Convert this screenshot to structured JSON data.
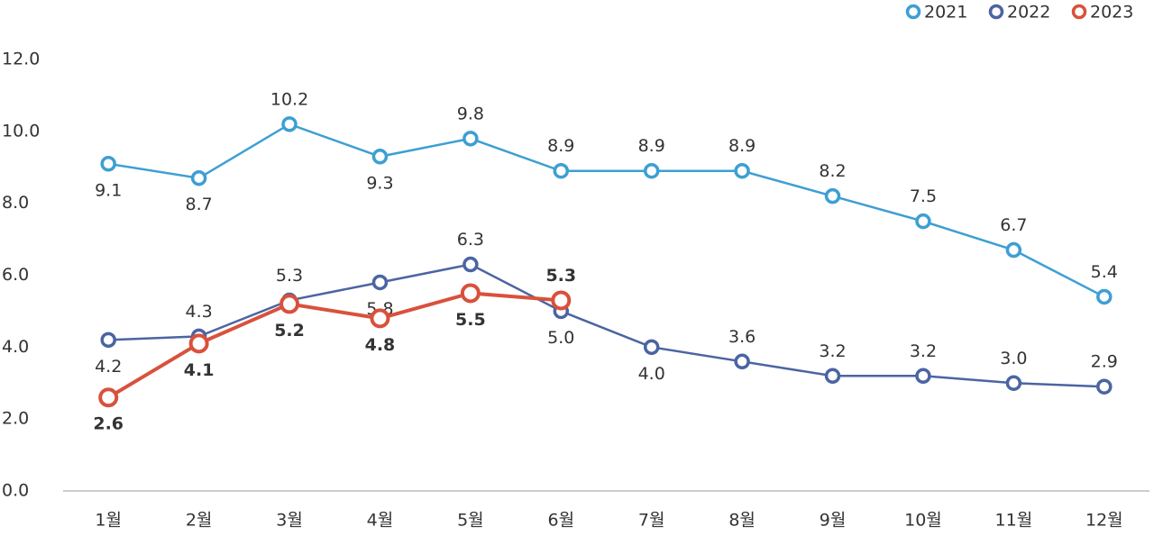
{
  "chart_data": {
    "type": "line",
    "categories": [
      "1월",
      "2월",
      "3월",
      "4월",
      "5월",
      "6월",
      "7월",
      "8월",
      "9월",
      "10월",
      "11월",
      "12월"
    ],
    "series": [
      {
        "name": "2021",
        "color": "#3d9fd3",
        "values": [
          9.1,
          8.7,
          10.2,
          9.3,
          9.8,
          8.9,
          8.9,
          8.9,
          8.2,
          7.5,
          6.7,
          5.4
        ],
        "value_labels": [
          "9.1",
          "8.7",
          "10.2",
          "9.3",
          "9.8",
          "8.9",
          "8.9",
          "8.9",
          "8.2",
          "7.5",
          "6.7",
          "5.4"
        ]
      },
      {
        "name": "2022",
        "color": "#4b64a2",
        "values": [
          4.2,
          4.3,
          5.3,
          5.8,
          6.3,
          5.0,
          4.0,
          3.6,
          3.2,
          3.2,
          3.0,
          2.9
        ],
        "value_labels": [
          "4.2",
          "4.3",
          "5.3",
          "5.8",
          "6.3",
          "5.0",
          "4.0",
          "3.6",
          "3.2",
          "3.2",
          "3.0",
          "2.9"
        ]
      },
      {
        "name": "2023",
        "color": "#d9513b",
        "values": [
          2.6,
          4.1,
          5.2,
          4.8,
          5.5,
          5.3,
          null,
          null,
          null,
          null,
          null,
          null
        ],
        "value_labels": [
          "2.6",
          "4.1",
          "5.2",
          "4.8",
          "5.5",
          "5.3",
          null,
          null,
          null,
          null,
          null,
          null
        ]
      }
    ],
    "ylim": [
      0,
      12
    ],
    "yticks": [
      {
        "value": 0,
        "label": "0.0"
      },
      {
        "value": 2,
        "label": "2.0"
      },
      {
        "value": 4,
        "label": "4.0"
      },
      {
        "value": 6,
        "label": "6.0"
      },
      {
        "value": 8,
        "label": "8.0"
      },
      {
        "value": 10,
        "label": "10.0"
      },
      {
        "value": 12,
        "label": "12.0"
      }
    ],
    "legend": "top-right"
  }
}
